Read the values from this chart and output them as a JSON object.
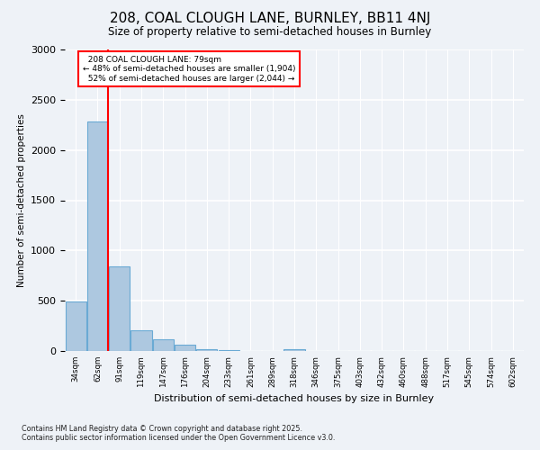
{
  "title": "208, COAL CLOUGH LANE, BURNLEY, BB11 4NJ",
  "subtitle": "Size of property relative to semi-detached houses in Burnley",
  "xlabel": "Distribution of semi-detached houses by size in Burnley",
  "ylabel": "Number of semi-detached properties",
  "categories": [
    "34sqm",
    "62sqm",
    "91sqm",
    "119sqm",
    "147sqm",
    "176sqm",
    "204sqm",
    "233sqm",
    "261sqm",
    "289sqm",
    "318sqm",
    "346sqm",
    "375sqm",
    "403sqm",
    "432sqm",
    "460sqm",
    "488sqm",
    "517sqm",
    "545sqm",
    "574sqm",
    "602sqm"
  ],
  "values": [
    490,
    2280,
    840,
    205,
    120,
    60,
    20,
    5,
    0,
    0,
    20,
    0,
    0,
    0,
    0,
    0,
    0,
    0,
    0,
    0,
    0
  ],
  "bar_color": "#adc8e0",
  "bar_edge_color": "#6aaad4",
  "property_bin_index": 1,
  "property_label": "208 COAL CLOUGH LANE: 79sqm",
  "smaller_pct": "48%",
  "smaller_count": "1,904",
  "larger_pct": "52%",
  "larger_count": "2,044",
  "line_color": "red",
  "ylim": [
    0,
    3000
  ],
  "yticks": [
    0,
    500,
    1000,
    1500,
    2000,
    2500,
    3000
  ],
  "background_color": "#eef2f7",
  "grid_color": "white",
  "footer_line1": "Contains HM Land Registry data © Crown copyright and database right 2025.",
  "footer_line2": "Contains public sector information licensed under the Open Government Licence v3.0."
}
